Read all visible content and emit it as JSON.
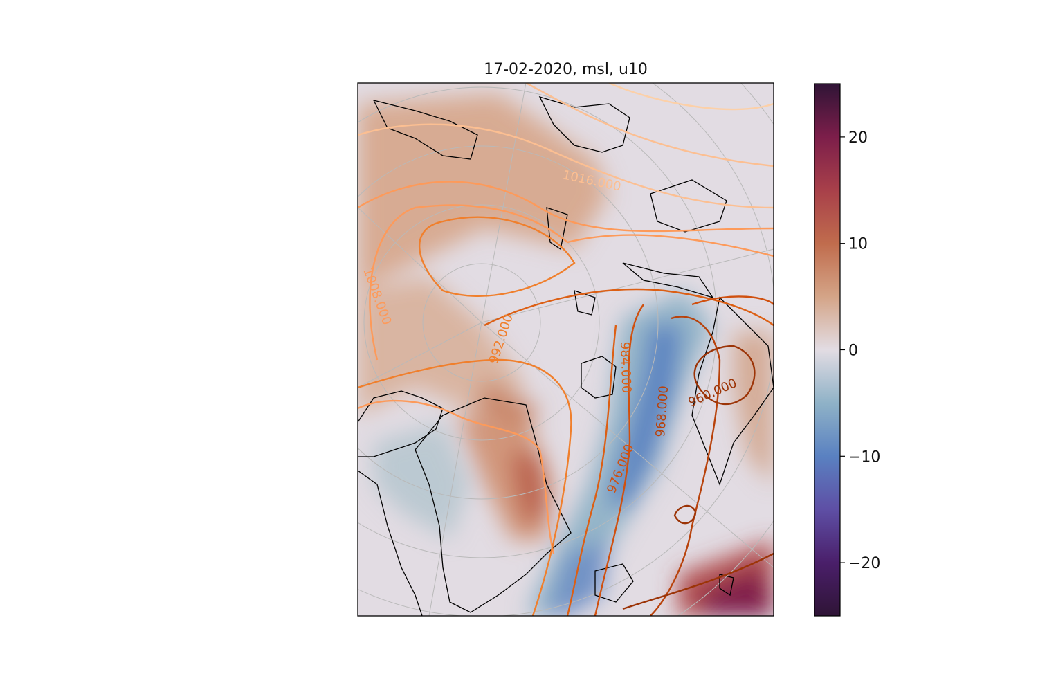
{
  "figure": {
    "title": "17-02-2020, msl, u10"
  },
  "colors": {
    "coastline": "#000000",
    "graticule": "#b9b9b9",
    "axes_border": "#000000",
    "background": "#ffffff"
  },
  "field": {
    "variable": "u10",
    "colormap": "twilight_shifted",
    "vmin": -25,
    "vmax": 25
  },
  "colorbar": {
    "min": -25,
    "max": 25,
    "ticks": [
      20,
      10,
      0,
      -10,
      -20
    ],
    "tick_labels": [
      "20",
      "10",
      "0",
      "−10",
      "−20"
    ],
    "stops": [
      {
        "value": -25,
        "color": "#2f1436"
      },
      {
        "value": -20,
        "color": "#4a1f6a"
      },
      {
        "value": -15,
        "color": "#5e4fa5"
      },
      {
        "value": -10,
        "color": "#5a81c1"
      },
      {
        "value": -5,
        "color": "#8fb2c7"
      },
      {
        "value": 0,
        "color": "#e2dce3"
      },
      {
        "value": 5,
        "color": "#d4a487"
      },
      {
        "value": 10,
        "color": "#c06c4d"
      },
      {
        "value": 15,
        "color": "#a8404a"
      },
      {
        "value": 20,
        "color": "#7c1e4a"
      },
      {
        "value": 25,
        "color": "#2f1436"
      }
    ]
  },
  "contours": {
    "variable": "msl",
    "labels": [
      {
        "text": "1016.000",
        "color": "#fcbf92"
      },
      {
        "text": "1008.000",
        "color": "#fd9a5a"
      },
      {
        "text": "992.000",
        "color": "#f07f2c"
      },
      {
        "text": "984.000",
        "color": "#dc5f14"
      },
      {
        "text": "976.000",
        "color": "#d0500f"
      },
      {
        "text": "968.000",
        "color": "#b8420b"
      },
      {
        "text": "960.000",
        "color": "#9c3407"
      }
    ]
  }
}
